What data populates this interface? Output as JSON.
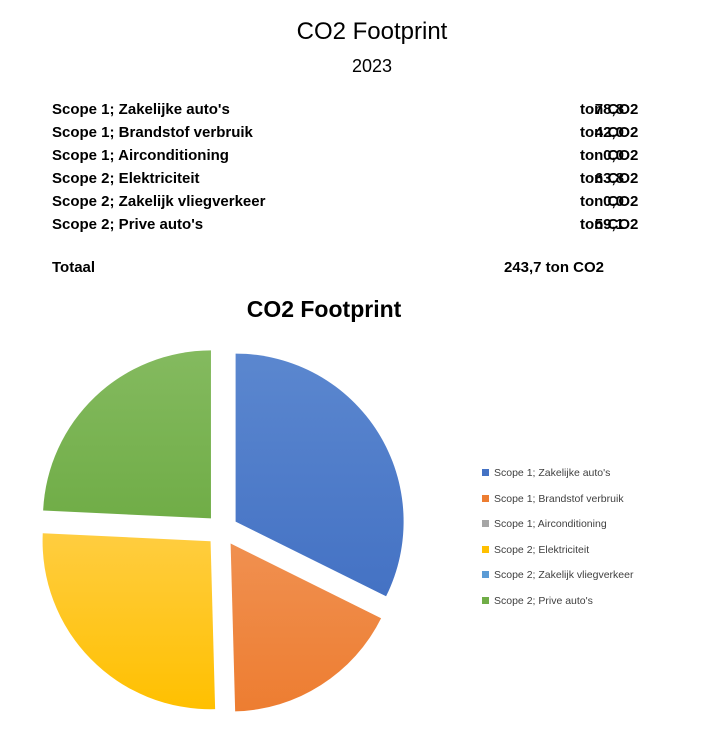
{
  "header": {
    "title": "CO2 Footprint",
    "year": "2023"
  },
  "rows": [
    {
      "label": "Scope 1; Zakelijke auto's",
      "value": "78,8",
      "unit": "ton CO2"
    },
    {
      "label": "Scope 1; Brandstof verbruik",
      "value": "42,0",
      "unit": "ton CO2"
    },
    {
      "label": "Scope 1; Airconditioning",
      "value": "0,0",
      "unit": "ton CO2"
    },
    {
      "label": "Scope 2; Elektriciteit",
      "value": "63,8",
      "unit": "ton CO2"
    },
    {
      "label": "Scope 2; Zakelijk vliegverkeer",
      "value": "0,0",
      "unit": "ton CO2"
    },
    {
      "label": "Scope 2; Prive auto's",
      "value": "59,1",
      "unit": "ton CO2"
    }
  ],
  "total": {
    "label": "Totaal",
    "value": "243,7 ton CO2"
  },
  "chart_data": {
    "type": "pie",
    "title": "CO2 Footprint",
    "legend_position": "right",
    "categories": [
      "Scope 1; Zakelijke auto's",
      "Scope 1; Brandstof verbruik",
      "Scope 1; Airconditioning",
      "Scope 2; Elektriciteit",
      "Scope 2; Zakelijk vliegverkeer",
      "Scope 2; Prive auto's"
    ],
    "values": [
      78.8,
      42.0,
      0.0,
      63.8,
      0.0,
      59.1
    ],
    "colors": [
      "#4472c4",
      "#ed7d31",
      "#a5a5a5",
      "#ffc000",
      "#5b9bd5",
      "#70ad47"
    ],
    "colors_light": [
      "#5b87cf",
      "#f09050",
      "#b5b5b5",
      "#ffcd40",
      "#74acde",
      "#84ba5f"
    ],
    "exploded": true
  }
}
